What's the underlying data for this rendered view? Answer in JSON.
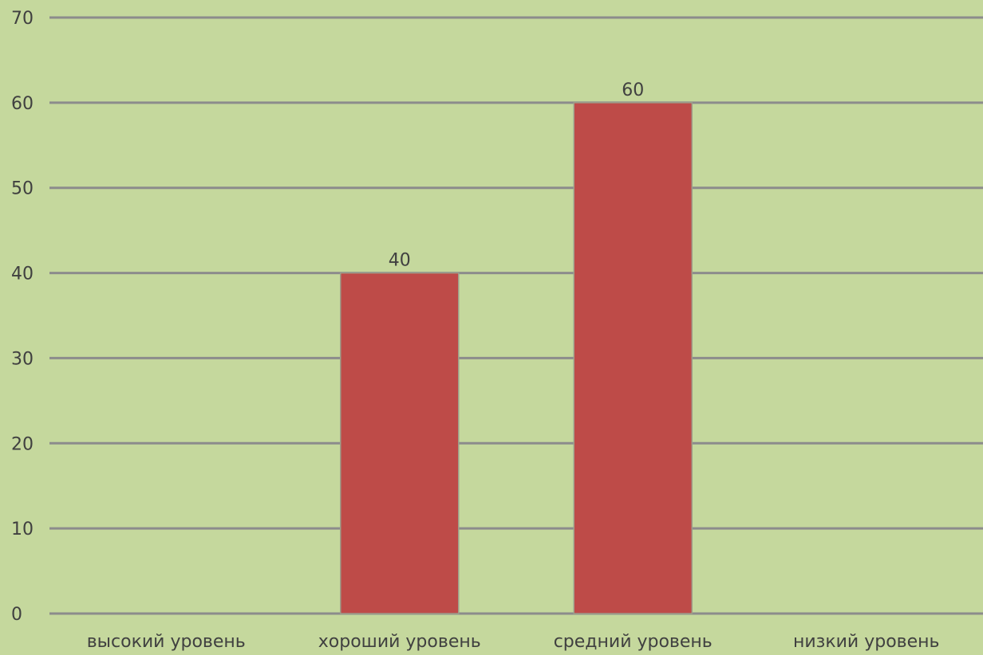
{
  "chart_data": {
    "type": "bar",
    "categories": [
      "высокий уровень",
      "хороший уровень",
      "средний уровень",
      "низкий уровень"
    ],
    "series": [
      {
        "values": [
          null,
          40,
          60,
          null
        ]
      }
    ],
    "data_labels": [
      "",
      "40",
      "60",
      ""
    ],
    "ylim": [
      0,
      70
    ],
    "yticks": [
      0,
      10,
      20,
      30,
      40,
      50,
      60,
      70
    ],
    "grid": true,
    "legend": "none",
    "colors": {
      "background": "#c5d89d",
      "bar": "#be4b48",
      "grid": "#8c8c8c",
      "text": "#404040"
    }
  }
}
